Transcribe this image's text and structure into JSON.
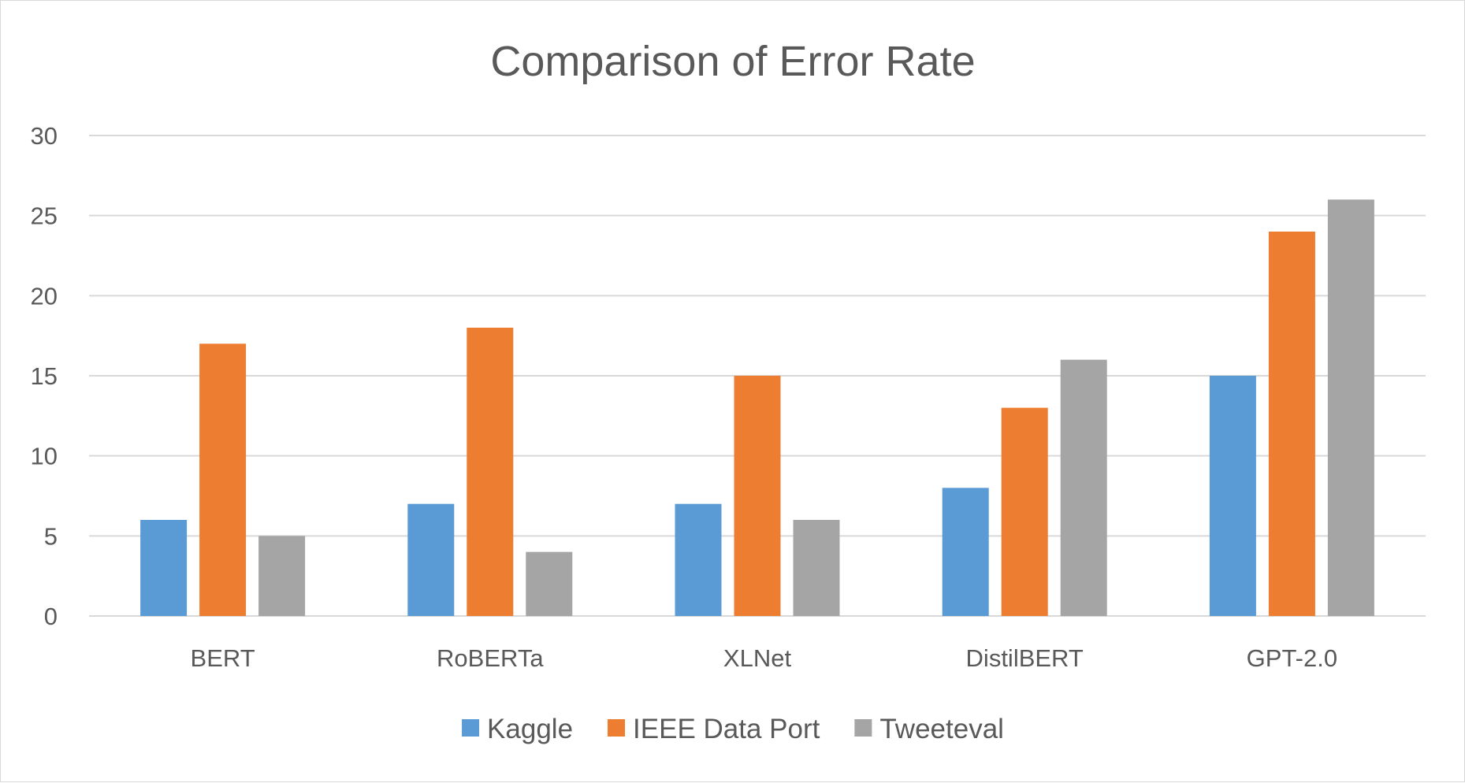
{
  "chart_data": {
    "type": "bar",
    "title": "Comparison of Error Rate",
    "xlabel": "",
    "ylabel": "",
    "categories": [
      "BERT",
      "RoBERTa",
      "XLNet",
      "DistilBERT",
      "GPT-2.0"
    ],
    "series": [
      {
        "name": "Kaggle",
        "color": "#5b9bd5",
        "values": [
          6,
          7,
          7,
          8,
          15
        ]
      },
      {
        "name": "IEEE Data Port",
        "color": "#ed7d31",
        "values": [
          17,
          18,
          15,
          13,
          24
        ]
      },
      {
        "name": "Tweeteval",
        "color": "#a5a5a5",
        "values": [
          5,
          4,
          6,
          16,
          26
        ]
      }
    ],
    "ylim": [
      0,
      30
    ],
    "yticks": [
      0,
      5,
      10,
      15,
      20,
      25,
      30
    ],
    "grid": true,
    "legend_position": "bottom"
  }
}
